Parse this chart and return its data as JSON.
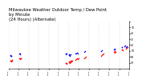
{
  "title": "Milwaukee Weather Outdoor Temp / Dew Point\nby Minute\n(24 Hours) (Alternate)",
  "title_fontsize": 3.8,
  "bg_color": "#ffffff",
  "plot_bg_color": "#ffffff",
  "grid_color": "#888888",
  "temp_color": "#ff0000",
  "dew_color": "#0000ff",
  "marker_size": 1.2,
  "ylim": [
    0,
    80
  ],
  "yticks": [
    10,
    20,
    30,
    40,
    50,
    60,
    70,
    80
  ],
  "ytick_labels": [
    "70",
    "60",
    "50",
    "40",
    "30",
    "20",
    "10",
    ""
  ],
  "xlim": [
    0,
    1440
  ],
  "xtick_interval": 120,
  "temp_points_x": [
    20,
    25,
    30,
    35,
    40,
    45,
    130,
    135,
    140,
    145,
    150,
    680,
    685,
    690,
    695,
    720,
    725,
    730,
    735,
    740,
    745,
    750,
    755,
    760,
    800,
    810,
    820,
    830,
    840,
    900,
    910,
    920,
    1100,
    1110,
    1120,
    1130,
    1260,
    1265,
    1270,
    1275,
    1350,
    1355,
    1360,
    1400,
    1410,
    1420
  ],
  "temp_points_y": [
    67,
    66,
    68,
    67,
    66,
    65,
    63,
    62,
    64,
    63,
    62,
    71,
    70,
    72,
    71,
    68,
    69,
    70,
    68,
    67,
    69,
    68,
    67,
    66,
    65,
    64,
    63,
    64,
    63,
    62,
    61,
    60,
    58,
    57,
    56,
    55,
    52,
    51,
    53,
    52,
    48,
    47,
    49,
    46,
    45,
    44
  ],
  "dew_points_x": [
    20,
    25,
    30,
    35,
    130,
    135,
    140,
    680,
    685,
    690,
    720,
    725,
    730,
    735,
    740,
    800,
    810,
    820,
    830,
    900,
    910,
    1100,
    1110,
    1260,
    1265,
    1270,
    1350,
    1355,
    1380,
    1390,
    1400,
    1410
  ],
  "dew_points_y": [
    58,
    57,
    59,
    58,
    55,
    54,
    56,
    55,
    56,
    54,
    57,
    56,
    58,
    57,
    56,
    54,
    55,
    53,
    54,
    52,
    51,
    50,
    49,
    47,
    46,
    48,
    43,
    44,
    42,
    41,
    43,
    42
  ],
  "blue_line_x": [
    720,
    900
  ],
  "blue_line_y": [
    57,
    55
  ]
}
